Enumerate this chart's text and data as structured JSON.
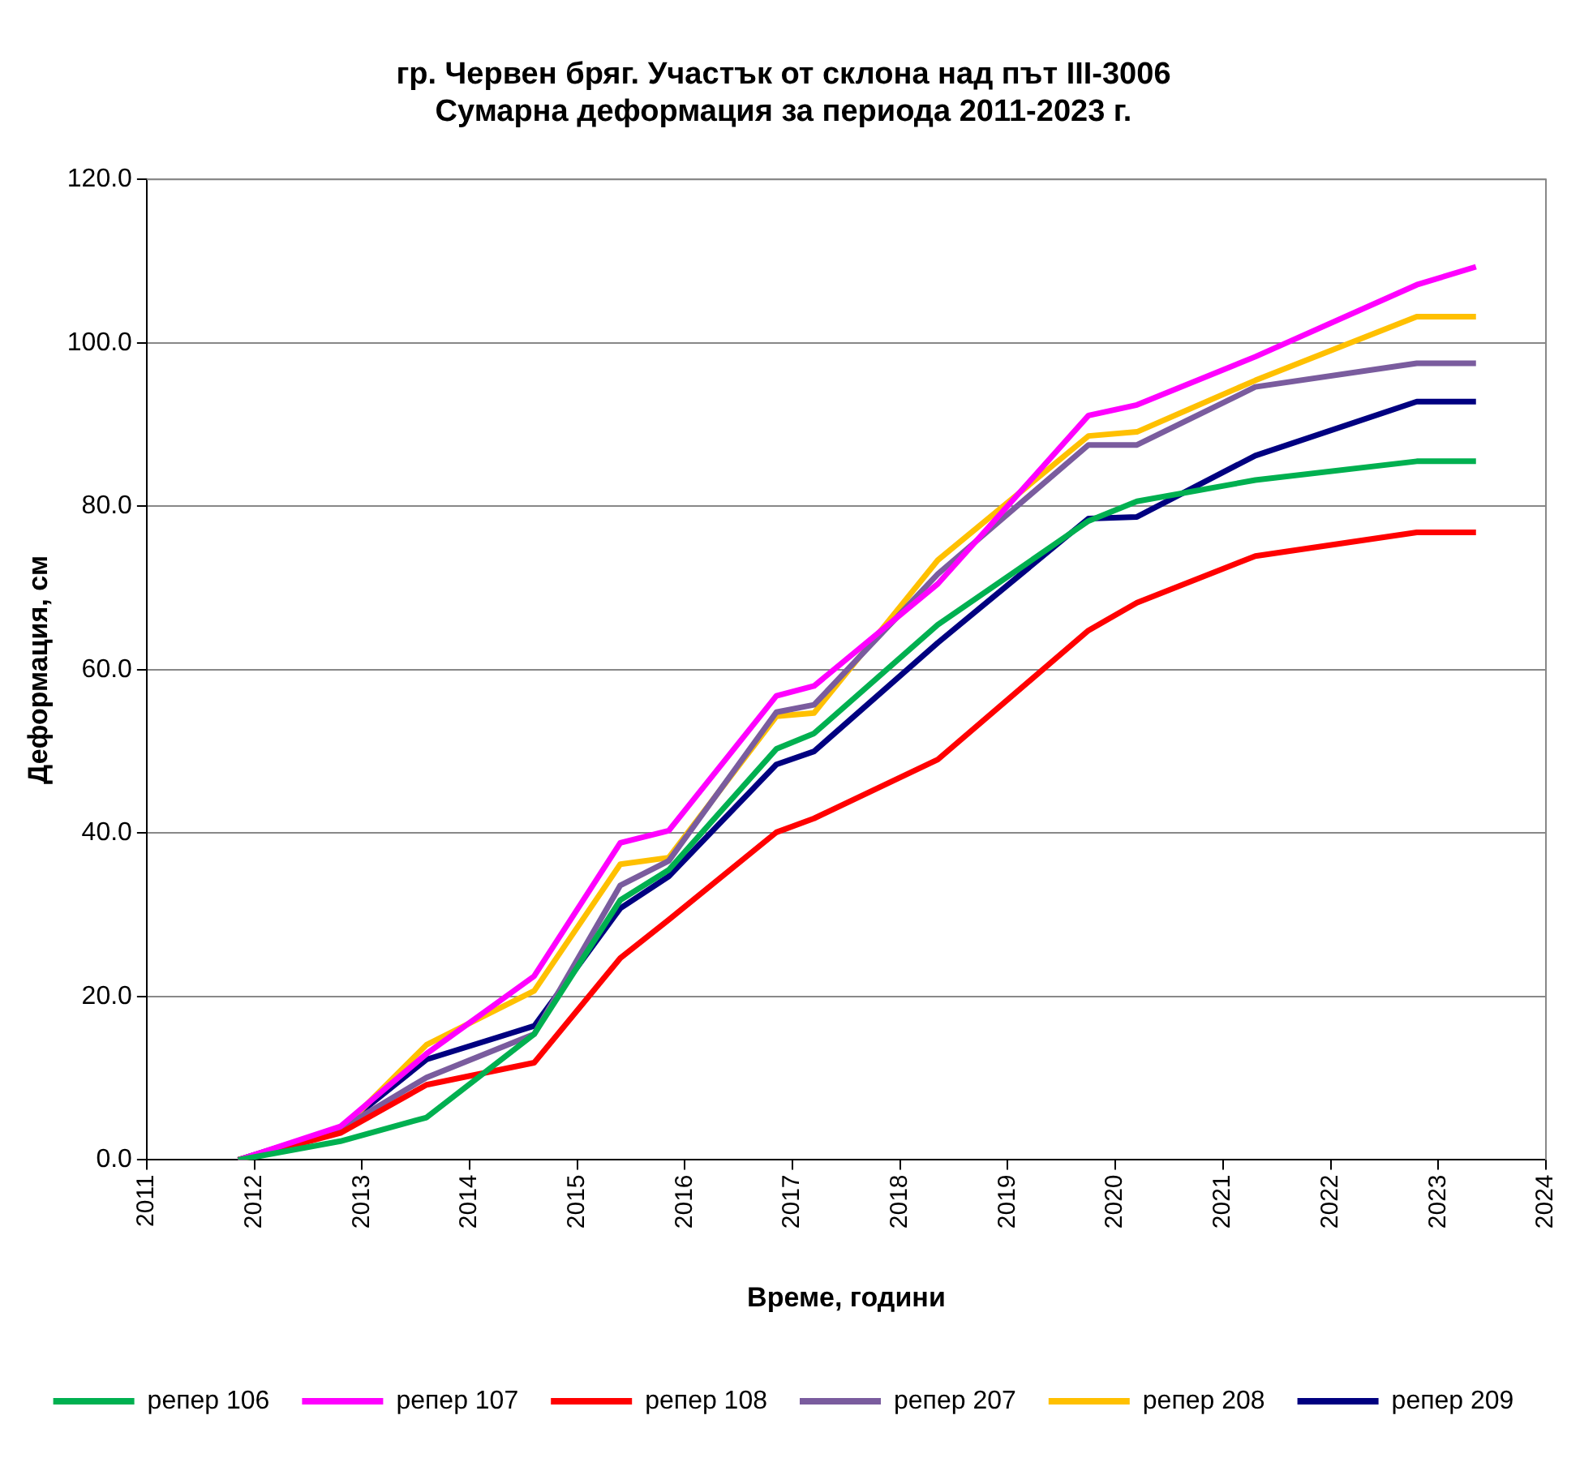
{
  "chart_data": {
    "type": "line",
    "title": [
      "гр. Червен бряг. Участък от склона над път III-3006",
      "Сумарна деформация за периода 2011-2023 г."
    ],
    "xlabel": "Време, години",
    "ylabel": "Деформация, см",
    "x": [
      2011.85,
      2012.8,
      2013.6,
      2014.6,
      2015.4,
      2015.85,
      2016.85,
      2017.2,
      2018.35,
      2019.75,
      2020.2,
      2021.3,
      2022.8,
      2023.35
    ],
    "series": [
      {
        "name": "репер 106",
        "color": "#00b050",
        "values": [
          0,
          2.3,
          5.2,
          15.4,
          31.8,
          35.5,
          50.3,
          52.2,
          65.5,
          78.2,
          80.6,
          83.2,
          85.5,
          85.5
        ]
      },
      {
        "name": "репер 107",
        "color": "#ff00ff",
        "values": [
          0,
          4.1,
          13.0,
          22.5,
          38.8,
          40.3,
          56.8,
          58.0,
          70.5,
          91.1,
          92.4,
          98.3,
          107.1,
          109.3
        ]
      },
      {
        "name": "репер 108",
        "color": "#ff0000",
        "values": [
          0,
          3.3,
          9.2,
          11.9,
          24.7,
          29.4,
          40.1,
          41.8,
          49.0,
          64.8,
          68.2,
          73.9,
          76.8,
          76.8
        ]
      },
      {
        "name": "репер 207",
        "color": "#7a5c9e",
        "values": [
          0,
          3.8,
          10.1,
          15.4,
          33.6,
          36.6,
          54.8,
          55.7,
          71.7,
          87.5,
          87.5,
          94.6,
          97.5,
          97.5
        ]
      },
      {
        "name": "репер 208",
        "color": "#ffc000",
        "values": [
          0,
          3.6,
          14.1,
          20.7,
          36.2,
          37.0,
          54.3,
          54.7,
          73.4,
          88.6,
          89.1,
          95.4,
          103.2,
          103.2
        ]
      },
      {
        "name": "репер 209",
        "color": "#000080",
        "values": [
          0,
          3.9,
          12.3,
          16.4,
          30.8,
          34.7,
          48.4,
          50.0,
          63.3,
          78.5,
          78.7,
          86.2,
          92.8,
          92.8
        ]
      }
    ],
    "xlim": [
      2011,
      2024
    ],
    "xticks": [
      2011,
      2012,
      2013,
      2014,
      2015,
      2016,
      2017,
      2018,
      2019,
      2020,
      2021,
      2022,
      2023,
      2024
    ],
    "ylim": [
      0,
      120
    ],
    "yticks": [
      {
        "value": 0,
        "label": "0.0"
      },
      {
        "value": 20,
        "label": "20.0"
      },
      {
        "value": 40,
        "label": "40.0"
      },
      {
        "value": 60,
        "label": "60.0"
      },
      {
        "value": 80,
        "label": "80.0"
      },
      {
        "value": 100,
        "label": "100.0"
      },
      {
        "value": 120,
        "label": "120.0"
      }
    ],
    "grid": "y",
    "legend": "bottom",
    "marker": "none",
    "line_style": "solid"
  }
}
